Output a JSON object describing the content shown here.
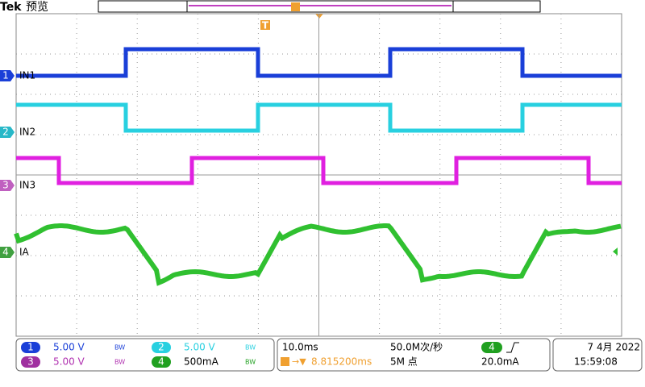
{
  "header": {
    "brand": "Tek",
    "mode": "预览"
  },
  "channels": [
    {
      "marker": "1",
      "label": "IN1",
      "scale": "5.00 V",
      "bw": "BW"
    },
    {
      "marker": "2",
      "label": "IN2",
      "scale": "5.00 V",
      "bw": "BW"
    },
    {
      "marker": "3",
      "label": "IN3",
      "scale": "5.00 V",
      "bw": "BW"
    },
    {
      "marker": "4",
      "label": "IA",
      "scale": "500mA",
      "bw": "BW"
    }
  ],
  "trigger_marker": "T",
  "timebase": {
    "scale": "10.0ms",
    "sample_rate": "50.0M次/秒",
    "delay": "8.815200ms",
    "record_length": "5M 点"
  },
  "trigger": {
    "channel": "4",
    "level": "20.0mA"
  },
  "datetime": {
    "date": "7 4月 2022",
    "time": "15:59:08"
  }
}
